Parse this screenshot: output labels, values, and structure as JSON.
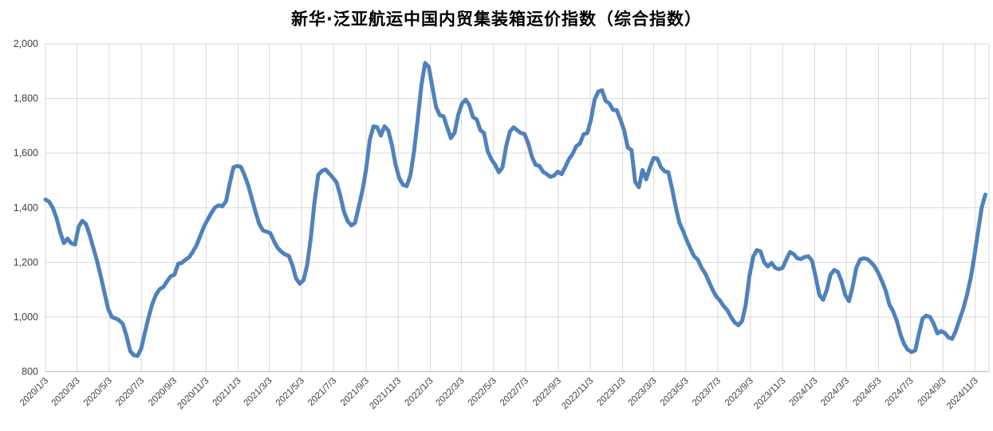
{
  "title": "新华·泛亚航运中国内贸集装箱运价指数（综合指数）",
  "chart_data": {
    "type": "line",
    "title": "新华·泛亚航运中国内贸集装箱运价指数（综合指数）",
    "series_name": "综合指数",
    "line_color": "#4F81BD",
    "grid_color": "#D9D9D9",
    "axis_line_color": "#BFBFBF",
    "axis_text_color": "#595959",
    "background_color": "#FFFFFF",
    "grid": true,
    "legend_position": "none",
    "xlabel": "",
    "ylabel": "",
    "ylim": [
      800,
      2000
    ],
    "y_ticks": [
      800,
      1000,
      1200,
      1400,
      1600,
      1800,
      2000
    ],
    "y_tick_labels": [
      "800",
      "1,000",
      "1,200",
      "1,400",
      "1,600",
      "1,800",
      "2,000"
    ],
    "x_start_date": "2020/1/3",
    "x_interval_days": 7,
    "x_tick_labels": [
      "2020/1/3",
      "2020/3/3",
      "2020/5/3",
      "2020/7/3",
      "2020/9/3",
      "2020/11/3",
      "2021/1/3",
      "2021/3/3",
      "2021/5/3",
      "2021/7/3",
      "2021/9/3",
      "2021/11/3",
      "2022/1/3",
      "2022/3/3",
      "2022/5/3",
      "2022/7/3",
      "2022/9/3",
      "2022/11/3",
      "2023/1/3",
      "2023/3/3",
      "2023/5/3",
      "2023/7/3",
      "2023/9/3",
      "2023/11/3",
      "2024/1/3",
      "2024/3/3",
      "2024/5/3",
      "2024/7/3",
      "2024/9/3",
      "2024/11/3"
    ],
    "values": [
      1430,
      1422,
      1400,
      1362,
      1310,
      1270,
      1287,
      1270,
      1265,
      1330,
      1352,
      1340,
      1300,
      1252,
      1205,
      1150,
      1090,
      1030,
      1000,
      995,
      988,
      975,
      930,
      875,
      860,
      858,
      885,
      945,
      1000,
      1048,
      1082,
      1102,
      1110,
      1131,
      1149,
      1155,
      1195,
      1198,
      1210,
      1219,
      1239,
      1263,
      1297,
      1331,
      1356,
      1380,
      1401,
      1409,
      1405,
      1424,
      1490,
      1548,
      1553,
      1550,
      1520,
      1482,
      1433,
      1385,
      1341,
      1317,
      1312,
      1307,
      1278,
      1253,
      1239,
      1229,
      1224,
      1190,
      1141,
      1122,
      1135,
      1190,
      1290,
      1420,
      1520,
      1535,
      1540,
      1525,
      1510,
      1492,
      1444,
      1385,
      1351,
      1335,
      1345,
      1404,
      1463,
      1540,
      1650,
      1698,
      1695,
      1664,
      1698,
      1683,
      1630,
      1557,
      1508,
      1484,
      1479,
      1518,
      1606,
      1723,
      1849,
      1930,
      1915,
      1840,
      1768,
      1738,
      1735,
      1694,
      1655,
      1674,
      1742,
      1781,
      1796,
      1776,
      1732,
      1723,
      1684,
      1673,
      1606,
      1577,
      1557,
      1530,
      1548,
      1625,
      1679,
      1694,
      1684,
      1673,
      1670,
      1635,
      1586,
      1557,
      1553,
      1532,
      1523,
      1513,
      1518,
      1532,
      1523,
      1548,
      1577,
      1596,
      1625,
      1635,
      1669,
      1673,
      1722,
      1796,
      1825,
      1830,
      1791,
      1782,
      1758,
      1757,
      1722,
      1684,
      1620,
      1611,
      1494,
      1475,
      1538,
      1504,
      1548,
      1582,
      1580,
      1548,
      1533,
      1530,
      1470,
      1403,
      1345,
      1315,
      1280,
      1250,
      1222,
      1210,
      1180,
      1160,
      1130,
      1100,
      1075,
      1060,
      1040,
      1025,
      1000,
      980,
      970,
      985,
      1045,
      1150,
      1220,
      1245,
      1240,
      1200,
      1185,
      1198,
      1180,
      1175,
      1180,
      1210,
      1238,
      1230,
      1215,
      1212,
      1220,
      1222,
      1205,
      1145,
      1080,
      1063,
      1100,
      1155,
      1172,
      1165,
      1130,
      1080,
      1058,
      1110,
      1180,
      1210,
      1215,
      1212,
      1200,
      1185,
      1160,
      1130,
      1095,
      1045,
      1020,
      985,
      935,
      900,
      880,
      872,
      878,
      940,
      995,
      1005,
      1000,
      975,
      940,
      948,
      942,
      925,
      920,
      950,
      990,
      1030,
      1080,
      1140,
      1220,
      1310,
      1400,
      1448
    ]
  }
}
